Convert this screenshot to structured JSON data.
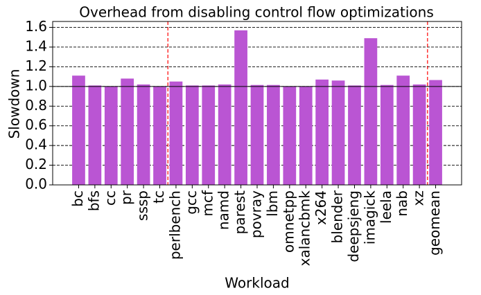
{
  "chart_data": {
    "type": "bar",
    "title": "Overhead from disabling control flow optimizations",
    "xlabel": "Workload",
    "ylabel": "Slowdown",
    "categories": [
      "bc",
      "bfs",
      "cc",
      "pr",
      "sssp",
      "tc",
      "perlbench",
      "gcc",
      "mcf",
      "namd",
      "parest",
      "povray",
      "lbm",
      "omnetpp",
      "xalancbmk",
      "x264",
      "blender",
      "deepsjeng",
      "imagick",
      "leela",
      "nab",
      "xz",
      "geomean"
    ],
    "values": [
      1.11,
      1.01,
      1.0,
      1.08,
      1.02,
      1.0,
      1.05,
      1.01,
      1.01,
      1.02,
      1.57,
      1.015,
      1.015,
      1.0,
      1.0,
      1.07,
      1.06,
      1.01,
      1.49,
      1.015,
      1.11,
      1.02,
      1.065
    ],
    "color": "#ba55d3",
    "ylim": [
      0,
      1.66
    ],
    "yticks": [
      {
        "value": 0,
        "label": "0.0"
      },
      0.2,
      0.4,
      0.6,
      0.8,
      {
        "value": 1,
        "label": "1.0"
      },
      1.2,
      1.4,
      1.6
    ],
    "grid": true,
    "reference_line": 1,
    "separators": [
      5.5,
      21.5
    ],
    "separator_color": "#ff0000"
  }
}
